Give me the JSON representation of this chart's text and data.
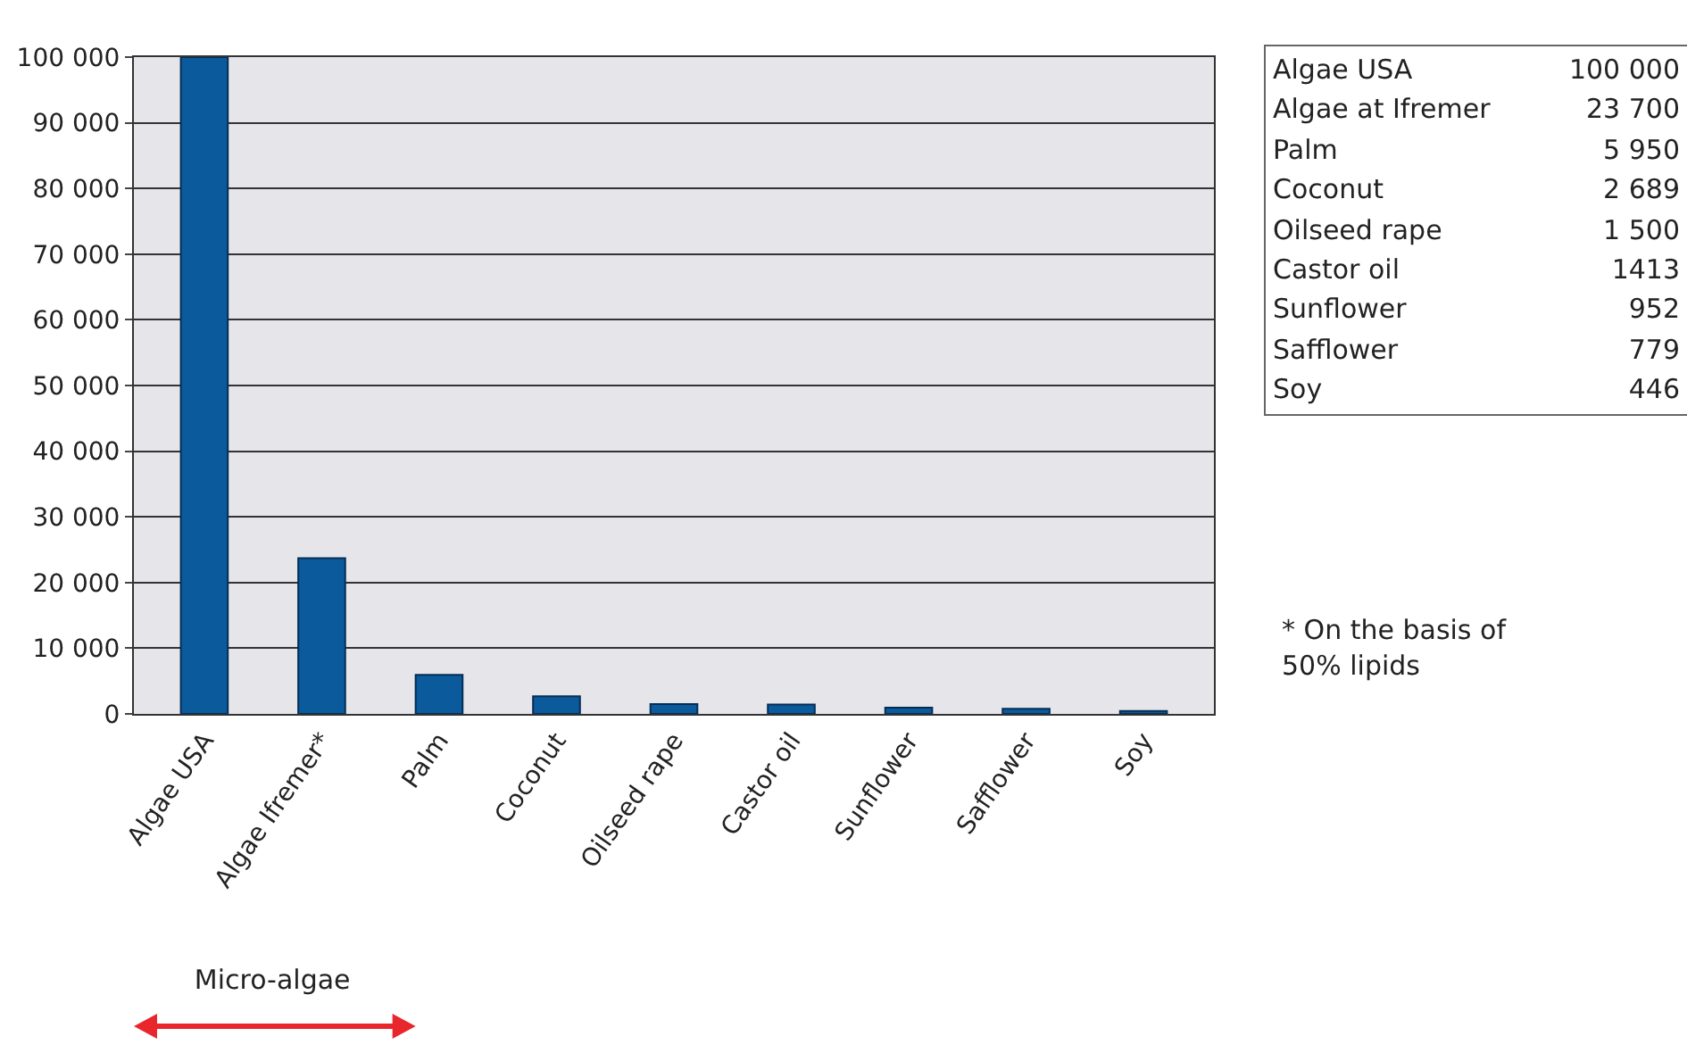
{
  "chart_data": {
    "type": "bar",
    "categories": [
      "Algae USA",
      "Algae Ifremer*",
      "Palm",
      "Coconut",
      "Oilseed rape",
      "Castor oil",
      "Sunflower",
      "Safflower",
      "Soy"
    ],
    "values": [
      100000,
      23700,
      5950,
      2689,
      1500,
      1413,
      952,
      779,
      446
    ],
    "color": "#0b5a9c",
    "ylim": [
      0,
      100000
    ],
    "yticks": [
      0,
      {
        "value": 10000,
        "label": "10 000"
      },
      {
        "value": 20000,
        "label": "20 000"
      },
      {
        "value": 30000,
        "label": "30 000"
      },
      {
        "value": 40000,
        "label": "40 000"
      },
      {
        "value": 50000,
        "label": "50 000"
      },
      {
        "value": 60000,
        "label": "60 000"
      },
      {
        "value": 70000,
        "label": "70 000"
      },
      {
        "value": 80000,
        "label": "80 000"
      },
      {
        "value": 90000,
        "label": "90 000"
      },
      {
        "value": 100000,
        "label": "100 000"
      }
    ],
    "grid": true,
    "annotations": [
      "Algae USA",
      "100 000",
      "Algae at Ifremer",
      "23 700",
      "Palm",
      "5 950",
      "Coconut",
      "2 689",
      "Oilseed rape",
      "1 500",
      "Castor oil",
      "1413",
      "Sunflower",
      "952",
      "Safflower",
      "779",
      "Soy",
      "446",
      "* On the basis of 50% lipids",
      "Micro-algae"
    ]
  }
}
